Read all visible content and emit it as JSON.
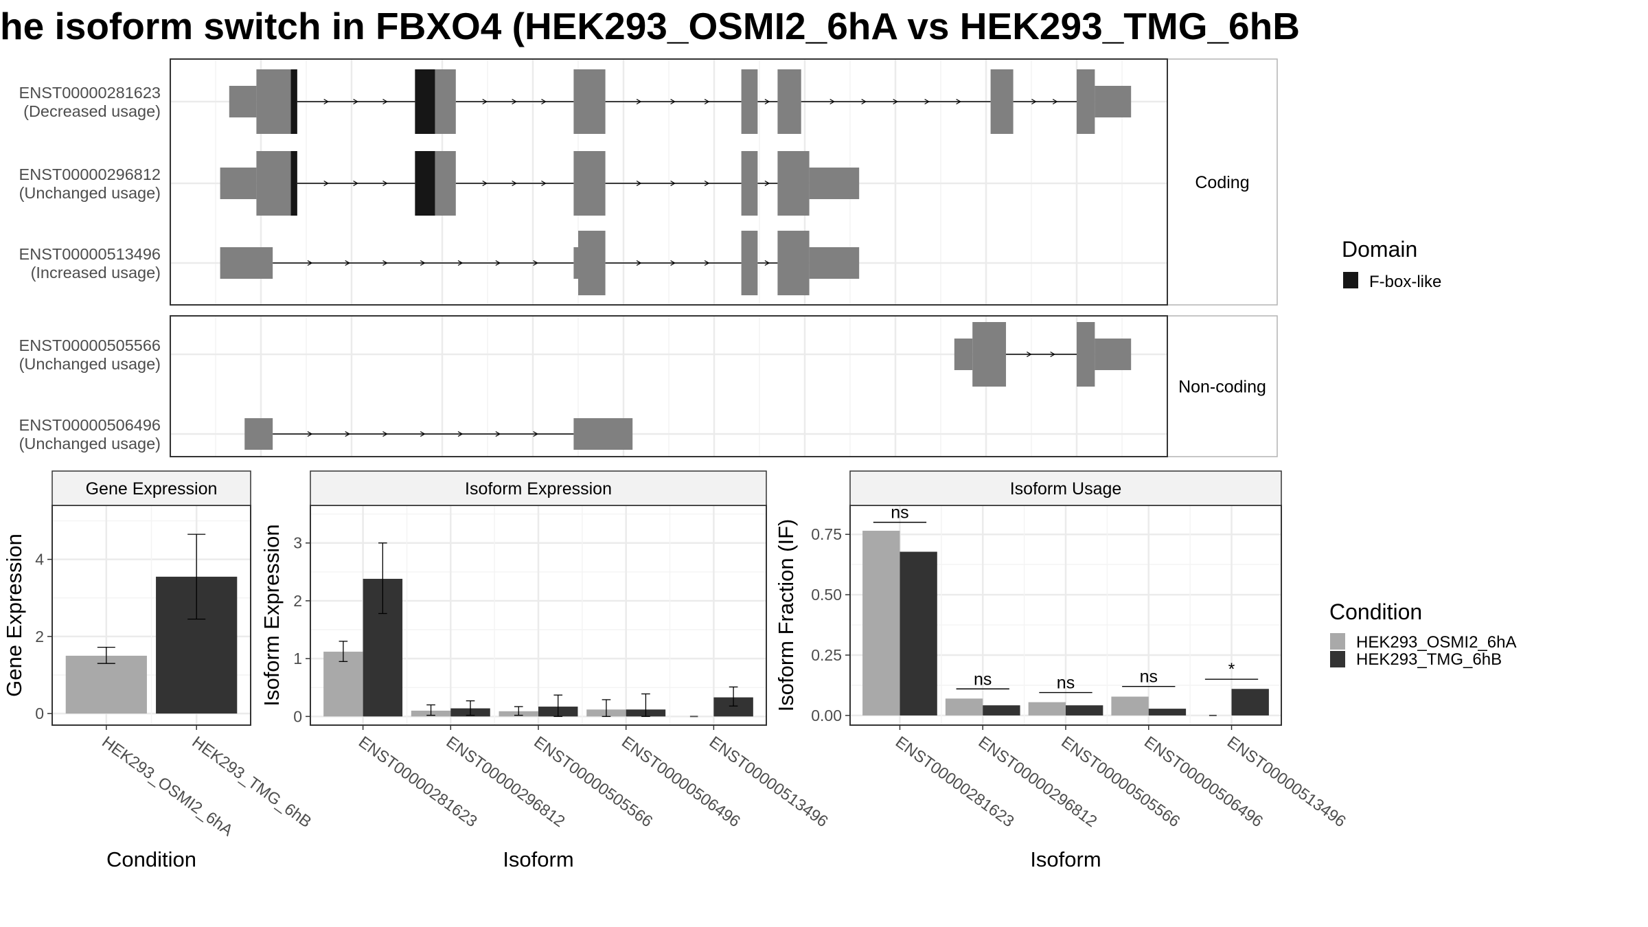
{
  "title": "he isoform switch in FBXO4 (HEK293_OSMI2_6hA vs HEK293_TMG_6hB",
  "colors": {
    "condition_a": "#a9a9a9",
    "condition_b": "#333333",
    "exon": "#808080",
    "domain": "#161616"
  },
  "chart_data": [
    {
      "type": "gene-structure",
      "panel": "transcript-structure",
      "strips": [
        "Coding",
        "Non-coding"
      ],
      "legend_title": "Domain",
      "legend_entries": [
        "F-box-like"
      ],
      "legend_position": "right",
      "grid": true,
      "transcripts": [
        {
          "id": "ENST00000281623",
          "usage": "(Decreased usage)",
          "group": "Coding",
          "row": 0,
          "exons": [
            [
              0.065,
              0.095,
              "utr"
            ],
            [
              0.095,
              0.14,
              "cds"
            ],
            [
              0.27,
              0.315,
              "cds"
            ],
            [
              0.445,
              0.48,
              "cds"
            ],
            [
              0.63,
              0.648,
              "cds"
            ],
            [
              0.67,
              0.696,
              "cds"
            ],
            [
              0.905,
              0.93,
              "cds"
            ],
            [
              1.0,
              1.02,
              "cds"
            ],
            [
              1.02,
              1.06,
              "utr"
            ]
          ],
          "domains": [
            [
              0.133,
              0.14
            ],
            [
              0.27,
              0.292
            ]
          ]
        },
        {
          "id": "ENST00000296812",
          "usage": "(Unchanged usage)",
          "group": "Coding",
          "row": 1,
          "exons": [
            [
              0.055,
              0.095,
              "utr"
            ],
            [
              0.095,
              0.14,
              "cds"
            ],
            [
              0.27,
              0.315,
              "cds"
            ],
            [
              0.445,
              0.48,
              "cds"
            ],
            [
              0.63,
              0.648,
              "cds"
            ],
            [
              0.67,
              0.705,
              "cds"
            ],
            [
              0.705,
              0.76,
              "utr"
            ]
          ],
          "domains": [
            [
              0.133,
              0.14
            ],
            [
              0.27,
              0.292
            ]
          ]
        },
        {
          "id": "ENST00000513496",
          "usage": "(Increased usage)",
          "group": "Coding",
          "row": 2,
          "exons": [
            [
              0.055,
              0.113,
              "utr"
            ],
            [
              0.445,
              0.45,
              "utr"
            ],
            [
              0.45,
              0.48,
              "cds"
            ],
            [
              0.63,
              0.648,
              "cds"
            ],
            [
              0.67,
              0.705,
              "cds"
            ],
            [
              0.705,
              0.76,
              "utr"
            ]
          ],
          "domains": []
        },
        {
          "id": "ENST00000505566",
          "usage": "(Unchanged usage)",
          "group": "Non-coding",
          "row": 0,
          "exons": [
            [
              0.865,
              0.885,
              "utr"
            ],
            [
              0.885,
              0.922,
              "cds"
            ],
            [
              1.0,
              1.02,
              "cds"
            ],
            [
              1.02,
              1.06,
              "utr"
            ]
          ],
          "domains": []
        },
        {
          "id": "ENST00000506496",
          "usage": "(Unchanged usage)",
          "group": "Non-coding",
          "row": 1,
          "exons": [
            [
              0.082,
              0.113,
              "utr"
            ],
            [
              0.445,
              0.51,
              "utr"
            ]
          ],
          "domains": []
        }
      ]
    },
    {
      "type": "bar",
      "strip": "Gene Expression",
      "xlabel": "Condition",
      "ylabel": "Gene Expression",
      "ylim": [
        -0.3,
        5.4
      ],
      "yticks": [
        0,
        2,
        4
      ],
      "categories": [
        "HEK293_OSMI2_6hA",
        "HEK293_TMG_6hB"
      ],
      "values": [
        1.5,
        3.55
      ],
      "errors": [
        [
          1.3,
          1.72
        ],
        [
          2.45,
          4.65
        ]
      ]
    },
    {
      "type": "bar",
      "strip": "Isoform Expression",
      "xlabel": "Isoform",
      "ylabel": "Isoform Expression",
      "ylim": [
        -0.15,
        3.65
      ],
      "yticks": [
        0,
        1,
        2,
        3
      ],
      "categories": [
        "ENST00000281623",
        "ENST00000296812",
        "ENST00000505566",
        "ENST00000506496",
        "ENST00000513496"
      ],
      "series": [
        {
          "name": "HEK293_OSMI2_6hA",
          "values": [
            1.12,
            0.1,
            0.09,
            0.12,
            0.0
          ],
          "errors": [
            [
              0.95,
              1.3
            ],
            [
              0.02,
              0.2
            ],
            [
              0.02,
              0.17
            ],
            [
              0.0,
              0.29
            ],
            [
              0.0,
              0.0
            ]
          ]
        },
        {
          "name": "HEK293_TMG_6hB",
          "values": [
            2.38,
            0.14,
            0.17,
            0.12,
            0.33
          ],
          "errors": [
            [
              1.78,
              3.0
            ],
            [
              0.02,
              0.27
            ],
            [
              0.0,
              0.37
            ],
            [
              0.0,
              0.39
            ],
            [
              0.18,
              0.51
            ]
          ]
        }
      ]
    },
    {
      "type": "bar",
      "strip": "Isoform Usage",
      "xlabel": "Isoform",
      "ylabel": "Isoform Fraction (IF)",
      "ylim": [
        -0.04,
        0.87
      ],
      "yticks": [
        "0.00",
        "0.25",
        "0.50",
        "0.75"
      ],
      "categories": [
        "ENST00000281623",
        "ENST00000296812",
        "ENST00000505566",
        "ENST00000506496",
        "ENST00000513496"
      ],
      "series": [
        {
          "name": "HEK293_OSMI2_6hA",
          "values": [
            0.765,
            0.07,
            0.055,
            0.078,
            0.0
          ]
        },
        {
          "name": "HEK293_TMG_6hB",
          "values": [
            0.678,
            0.042,
            0.042,
            0.028,
            0.11
          ]
        }
      ],
      "annotations": [
        {
          "category": "ENST00000281623",
          "label": "ns",
          "y": 0.8
        },
        {
          "category": "ENST00000296812",
          "label": "ns",
          "y": 0.11
        },
        {
          "category": "ENST00000505566",
          "label": "ns",
          "y": 0.095
        },
        {
          "category": "ENST00000506496",
          "label": "ns",
          "y": 0.12
        },
        {
          "category": "ENST00000513496",
          "label": "*",
          "y": 0.15
        }
      ],
      "legend_title": "Condition",
      "legend_entries": [
        "HEK293_OSMI2_6hA",
        "HEK293_TMG_6hB"
      ],
      "legend_position": "right"
    }
  ]
}
